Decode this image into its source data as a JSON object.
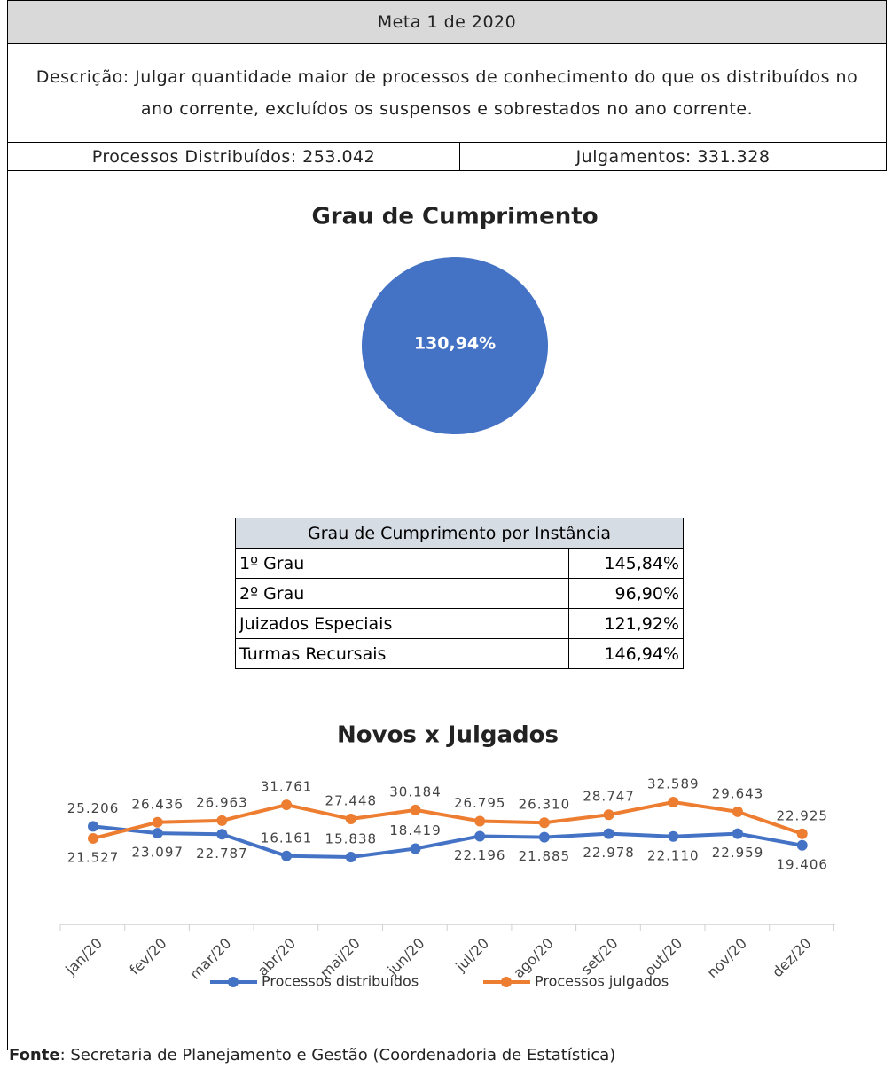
{
  "header": {
    "title": "Meta 1 de 2020",
    "description": "Descrição: Julgar quantidade maior de processos de conhecimento do que os distribuídos no ano corrente, excluídos os suspensos e sobrestados no ano corrente.",
    "distributed": "Processos Distribuídos: 253.042",
    "judgments": "Julgamentos: 331.328"
  },
  "chart_data": [
    {
      "type": "pie",
      "title": "Grau de Cumprimento",
      "values": [
        130.94
      ],
      "value_labels": [
        "130,94%"
      ],
      "color": "#4472c4"
    },
    {
      "type": "line",
      "title": "Novos x Julgados",
      "categories": [
        "jan/20",
        "fev/20",
        "mar/20",
        "abr/20",
        "mai/20",
        "jun/20",
        "jul/20",
        "ago/20",
        "set/20",
        "out/20",
        "nov/20",
        "dez/20"
      ],
      "series": [
        {
          "name": "Processos distribuídos",
          "color": "#4472c4",
          "values": [
            25206,
            23097,
            22787,
            16161,
            15838,
            18419,
            22196,
            21885,
            22978,
            22110,
            22959,
            19406
          ],
          "value_labels": [
            "25.206",
            "23.097",
            "22.787",
            "16.161",
            "15.838",
            "18.419",
            "22.196",
            "21.885",
            "22.978",
            "22.110",
            "22.959",
            "19.406"
          ]
        },
        {
          "name": "Processos julgados",
          "color": "#ed7d31",
          "values": [
            21527,
            26436,
            26963,
            31761,
            27448,
            30184,
            26795,
            26310,
            28747,
            32589,
            29643,
            22925
          ],
          "value_labels": [
            "21.527",
            "26.436",
            "26.963",
            "31.761",
            "27.448",
            "30.184",
            "26.795",
            "26.310",
            "28.747",
            "32.589",
            "29.643",
            "22.925"
          ]
        }
      ],
      "legend": "bottom"
    }
  ],
  "table": {
    "title": "Grau de Cumprimento por Instância",
    "rows": [
      [
        "1º Grau",
        "145,84%"
      ],
      [
        "2º Grau",
        "96,90%"
      ],
      [
        "Juizados Especiais",
        "121,92%"
      ],
      [
        "Turmas Recursais",
        "146,94%"
      ]
    ]
  },
  "footer": {
    "label": "Fonte",
    "text": ": Secretaria de Planejamento e Gestão (Coordenadoria de Estatística)"
  }
}
